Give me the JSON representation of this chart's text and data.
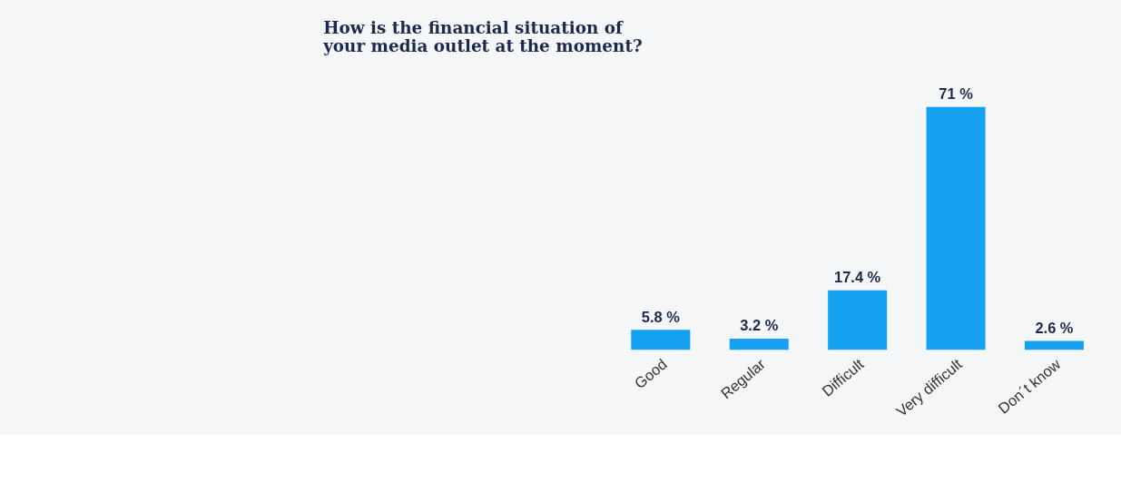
{
  "chart_data": {
    "type": "bar",
    "title": "How is the financial situation of\nyour media outlet at the moment?",
    "categories": [
      "Good",
      "Regular",
      "Difficult",
      "Very difficult",
      "Don´t know"
    ],
    "values": [
      5.8,
      3.2,
      17.4,
      71,
      2.6
    ],
    "value_labels": [
      "5.8 %",
      "3.2 %",
      "17.4 %",
      "71 %",
      "2.6 %"
    ],
    "color": "#15a1f2",
    "relative": false,
    "grid": false
  }
}
